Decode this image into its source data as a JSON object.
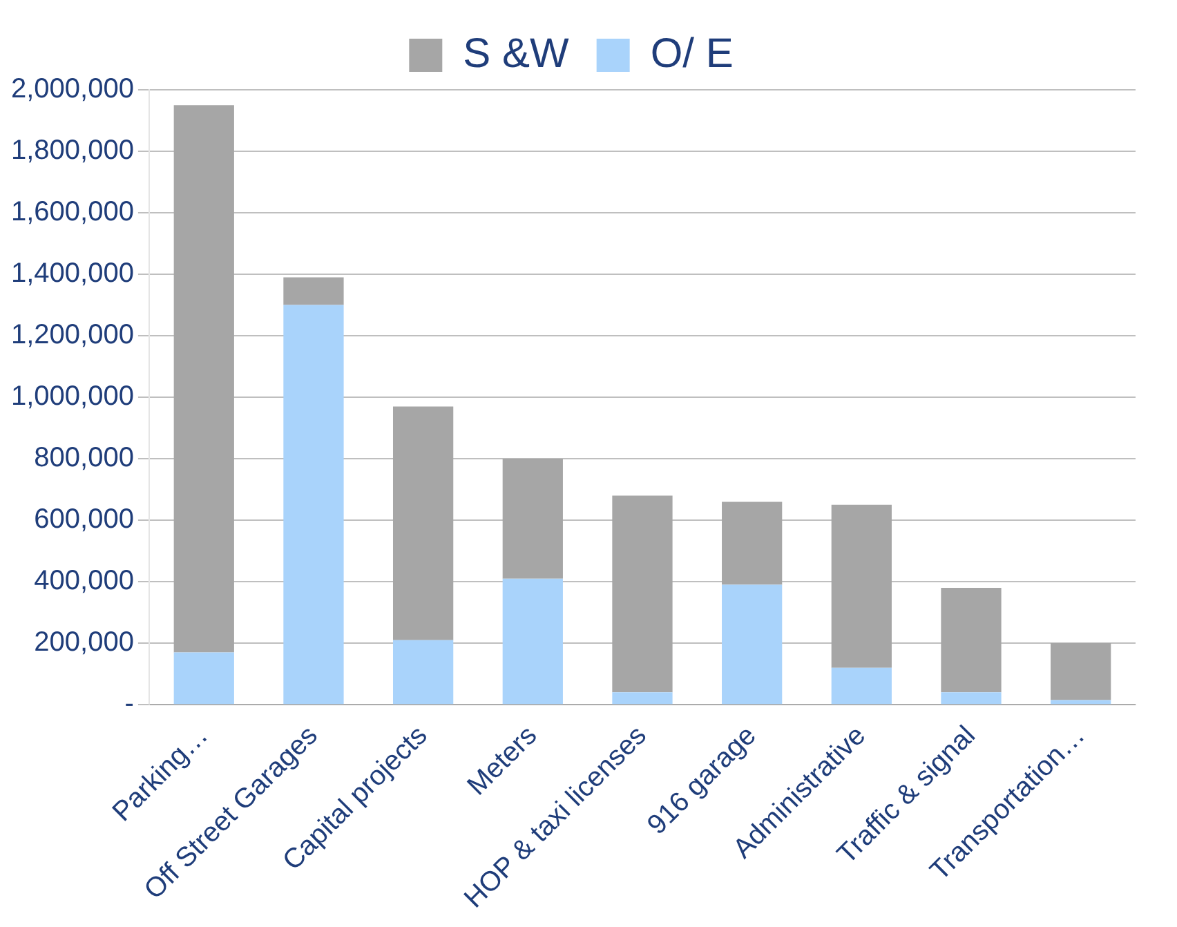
{
  "chart_data": {
    "type": "bar",
    "stacked": true,
    "categories": [
      "Parking…",
      "Off Street Garages",
      "Capital projects",
      "Meters",
      "HOP & taxi licenses",
      "916 garage",
      "Administrative",
      "Traffic & signal",
      "Transportation…"
    ],
    "series": [
      {
        "name": "O/ E",
        "color": "#a9d3fb",
        "values": [
          170000,
          1300000,
          210000,
          410000,
          40000,
          390000,
          120000,
          40000,
          15000
        ]
      },
      {
        "name": "S &W",
        "color": "#a6a6a6",
        "values": [
          1780000,
          90000,
          760000,
          390000,
          640000,
          270000,
          530000,
          340000,
          185000
        ]
      }
    ],
    "ylim": [
      0,
      2000000
    ],
    "yticks": [
      {
        "value": 0,
        "label": "-"
      },
      {
        "value": 200000,
        "label": "200,000"
      },
      {
        "value": 400000,
        "label": "400,000"
      },
      {
        "value": 600000,
        "label": "600,000"
      },
      {
        "value": 800000,
        "label": "800,000"
      },
      {
        "value": 1000000,
        "label": "1,000,000"
      },
      {
        "value": 1200000,
        "label": "1,200,000"
      },
      {
        "value": 1400000,
        "label": "1,400,000"
      },
      {
        "value": 1600000,
        "label": "1,600,000"
      },
      {
        "value": 1800000,
        "label": "1,800,000"
      },
      {
        "value": 2000000,
        "label": "2,000,000"
      }
    ],
    "grid": "y",
    "legend": "top"
  }
}
